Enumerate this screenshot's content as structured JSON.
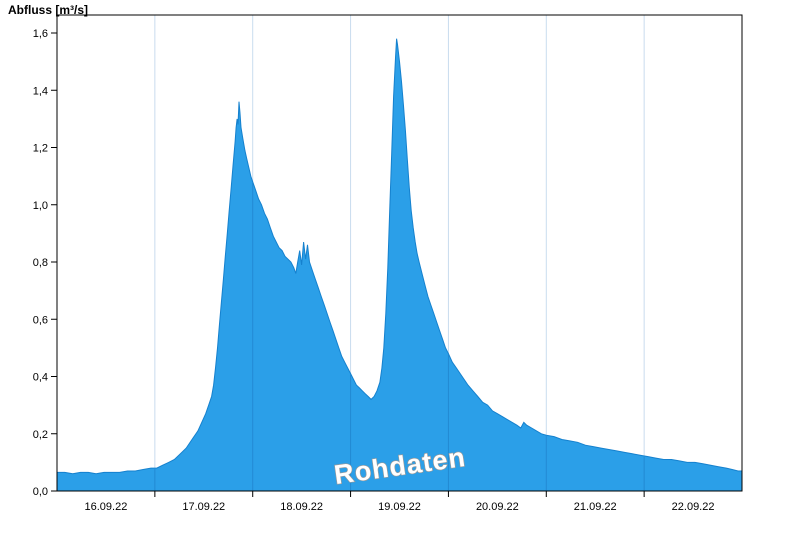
{
  "chart_data": {
    "type": "area",
    "title": "Abfluss [m³/s]",
    "ylabel": "Abfluss [m³/s]",
    "xlabel": "",
    "watermark": "Rohdaten",
    "x_range": [
      16.0,
      23.0
    ],
    "y_range": [
      0.0,
      1.6
    ],
    "y_tick_values": [
      0.0,
      0.2,
      0.4,
      0.6,
      0.8,
      1.0,
      1.2,
      1.4,
      1.6
    ],
    "y_tick_labels": [
      "0,0",
      "0,2",
      "0,4",
      "0,6",
      "0,8",
      "1,0",
      "1,2",
      "1,4",
      "1,6"
    ],
    "x_gridline_days": [
      17,
      18,
      19,
      20,
      21,
      22
    ],
    "x_label_days": [
      16.5,
      17.5,
      18.5,
      19.5,
      20.5,
      21.5,
      22.5
    ],
    "x_tick_labels": [
      "16.09.22",
      "17.09.22",
      "18.09.22",
      "19.09.22",
      "20.09.22",
      "21.09.22",
      "22.09.22"
    ],
    "colors": {
      "fill": "#2B9FE8",
      "line": "#1581CE",
      "grid_light": "#C9DCEE",
      "grid_dark": "#1D7CC4",
      "axis": "#000000",
      "background": "#FFFFFF",
      "watermark_fill": "#FFFFFF",
      "watermark_outline": "#999999",
      "label": "#000000"
    },
    "points": [
      [
        16.0,
        0.065
      ],
      [
        16.08,
        0.065
      ],
      [
        16.16,
        0.06
      ],
      [
        16.24,
        0.065
      ],
      [
        16.32,
        0.065
      ],
      [
        16.4,
        0.06
      ],
      [
        16.48,
        0.065
      ],
      [
        16.56,
        0.065
      ],
      [
        16.64,
        0.065
      ],
      [
        16.72,
        0.07
      ],
      [
        16.8,
        0.07
      ],
      [
        16.88,
        0.075
      ],
      [
        16.96,
        0.08
      ],
      [
        17.02,
        0.08
      ],
      [
        17.08,
        0.09
      ],
      [
        17.14,
        0.1
      ],
      [
        17.2,
        0.11
      ],
      [
        17.26,
        0.13
      ],
      [
        17.32,
        0.15
      ],
      [
        17.38,
        0.18
      ],
      [
        17.44,
        0.21
      ],
      [
        17.48,
        0.24
      ],
      [
        17.52,
        0.27
      ],
      [
        17.55,
        0.3
      ],
      [
        17.58,
        0.33
      ],
      [
        17.6,
        0.37
      ],
      [
        17.62,
        0.43
      ],
      [
        17.64,
        0.5
      ],
      [
        17.66,
        0.58
      ],
      [
        17.68,
        0.66
      ],
      [
        17.7,
        0.74
      ],
      [
        17.72,
        0.82
      ],
      [
        17.74,
        0.9
      ],
      [
        17.76,
        0.98
      ],
      [
        17.78,
        1.06
      ],
      [
        17.8,
        1.14
      ],
      [
        17.82,
        1.22
      ],
      [
        17.83,
        1.27
      ],
      [
        17.84,
        1.3
      ],
      [
        17.85,
        1.28
      ],
      [
        17.86,
        1.36
      ],
      [
        17.87,
        1.32
      ],
      [
        17.88,
        1.27
      ],
      [
        17.9,
        1.23
      ],
      [
        17.92,
        1.19
      ],
      [
        17.94,
        1.16
      ],
      [
        17.96,
        1.13
      ],
      [
        17.98,
        1.1
      ],
      [
        18.0,
        1.08
      ],
      [
        18.03,
        1.05
      ],
      [
        18.06,
        1.02
      ],
      [
        18.09,
        1.0
      ],
      [
        18.12,
        0.97
      ],
      [
        18.15,
        0.95
      ],
      [
        18.18,
        0.92
      ],
      [
        18.21,
        0.89
      ],
      [
        18.24,
        0.87
      ],
      [
        18.27,
        0.85
      ],
      [
        18.3,
        0.84
      ],
      [
        18.33,
        0.82
      ],
      [
        18.36,
        0.81
      ],
      [
        18.39,
        0.8
      ],
      [
        18.42,
        0.78
      ],
      [
        18.44,
        0.76
      ],
      [
        18.46,
        0.8
      ],
      [
        18.48,
        0.84
      ],
      [
        18.5,
        0.79
      ],
      [
        18.52,
        0.87
      ],
      [
        18.54,
        0.81
      ],
      [
        18.56,
        0.86
      ],
      [
        18.58,
        0.8
      ],
      [
        18.61,
        0.77
      ],
      [
        18.64,
        0.74
      ],
      [
        18.67,
        0.71
      ],
      [
        18.7,
        0.68
      ],
      [
        18.73,
        0.65
      ],
      [
        18.76,
        0.62
      ],
      [
        18.79,
        0.59
      ],
      [
        18.82,
        0.56
      ],
      [
        18.85,
        0.53
      ],
      [
        18.88,
        0.5
      ],
      [
        18.91,
        0.47
      ],
      [
        18.94,
        0.45
      ],
      [
        18.97,
        0.43
      ],
      [
        19.0,
        0.41
      ],
      [
        19.03,
        0.39
      ],
      [
        19.06,
        0.37
      ],
      [
        19.09,
        0.36
      ],
      [
        19.12,
        0.35
      ],
      [
        19.15,
        0.34
      ],
      [
        19.18,
        0.33
      ],
      [
        19.21,
        0.32
      ],
      [
        19.24,
        0.33
      ],
      [
        19.27,
        0.35
      ],
      [
        19.3,
        0.38
      ],
      [
        19.32,
        0.43
      ],
      [
        19.34,
        0.5
      ],
      [
        19.36,
        0.62
      ],
      [
        19.38,
        0.78
      ],
      [
        19.4,
        0.98
      ],
      [
        19.42,
        1.18
      ],
      [
        19.44,
        1.38
      ],
      [
        19.46,
        1.52
      ],
      [
        19.47,
        1.58
      ],
      [
        19.48,
        1.56
      ],
      [
        19.5,
        1.5
      ],
      [
        19.52,
        1.43
      ],
      [
        19.54,
        1.35
      ],
      [
        19.56,
        1.26
      ],
      [
        19.58,
        1.16
      ],
      [
        19.6,
        1.06
      ],
      [
        19.62,
        0.98
      ],
      [
        19.64,
        0.92
      ],
      [
        19.66,
        0.87
      ],
      [
        19.68,
        0.83
      ],
      [
        19.7,
        0.8
      ],
      [
        19.73,
        0.76
      ],
      [
        19.76,
        0.72
      ],
      [
        19.79,
        0.68
      ],
      [
        19.82,
        0.65
      ],
      [
        19.85,
        0.62
      ],
      [
        19.88,
        0.59
      ],
      [
        19.91,
        0.56
      ],
      [
        19.94,
        0.53
      ],
      [
        19.97,
        0.5
      ],
      [
        20.0,
        0.48
      ],
      [
        20.04,
        0.45
      ],
      [
        20.08,
        0.43
      ],
      [
        20.12,
        0.41
      ],
      [
        20.16,
        0.39
      ],
      [
        20.2,
        0.37
      ],
      [
        20.25,
        0.35
      ],
      [
        20.3,
        0.33
      ],
      [
        20.35,
        0.31
      ],
      [
        20.4,
        0.3
      ],
      [
        20.45,
        0.28
      ],
      [
        20.5,
        0.27
      ],
      [
        20.55,
        0.26
      ],
      [
        20.6,
        0.25
      ],
      [
        20.65,
        0.24
      ],
      [
        20.7,
        0.23
      ],
      [
        20.74,
        0.22
      ],
      [
        20.77,
        0.24
      ],
      [
        20.8,
        0.23
      ],
      [
        20.85,
        0.22
      ],
      [
        20.9,
        0.21
      ],
      [
        20.95,
        0.2
      ],
      [
        21.0,
        0.195
      ],
      [
        21.08,
        0.19
      ],
      [
        21.16,
        0.18
      ],
      [
        21.24,
        0.175
      ],
      [
        21.32,
        0.17
      ],
      [
        21.4,
        0.16
      ],
      [
        21.48,
        0.155
      ],
      [
        21.56,
        0.15
      ],
      [
        21.64,
        0.145
      ],
      [
        21.72,
        0.14
      ],
      [
        21.8,
        0.135
      ],
      [
        21.88,
        0.13
      ],
      [
        21.96,
        0.125
      ],
      [
        22.04,
        0.12
      ],
      [
        22.12,
        0.115
      ],
      [
        22.2,
        0.11
      ],
      [
        22.28,
        0.11
      ],
      [
        22.36,
        0.105
      ],
      [
        22.44,
        0.1
      ],
      [
        22.52,
        0.1
      ],
      [
        22.6,
        0.095
      ],
      [
        22.68,
        0.09
      ],
      [
        22.76,
        0.085
      ],
      [
        22.84,
        0.08
      ],
      [
        22.9,
        0.075
      ],
      [
        22.96,
        0.07
      ],
      [
        23.0,
        0.07
      ]
    ]
  }
}
